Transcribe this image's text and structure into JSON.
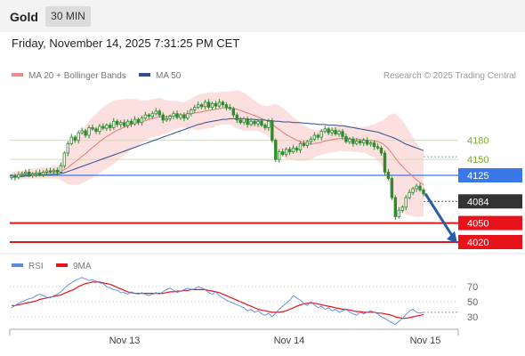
{
  "header": {
    "title": "Gold",
    "timeframe": "30 MIN"
  },
  "timestamp": "Friday, November 14, 2025 7:31:25 PM CET",
  "legend_main": [
    {
      "name": "MA 20 + Bollinger Bands",
      "color": "#f28a8a"
    },
    {
      "name": "MA 50",
      "color": "#2f4f8f"
    }
  ],
  "credit": "Research © 2025 Trading Central",
  "colors": {
    "up": "#2e8b2e",
    "down": "#2e8b2e",
    "resistance": "#e8121b",
    "pivot": "#3a78e8",
    "current": "#333333",
    "arrow": "#2a5caa",
    "band": "#fcd9d9",
    "ma20": "#e07b7b",
    "ma50": "#2f4f8f",
    "rsi": "#5b8bdc",
    "rsi_ma": "#e8121b"
  },
  "chart_data": [
    {
      "type": "candlestick",
      "title": "",
      "x_ticks": [
        "Nov 13",
        "Nov 14",
        "Nov 15"
      ],
      "levels": [
        {
          "value": 4180,
          "label": "4180",
          "kind": "support-thin"
        },
        {
          "value": 4150,
          "label": "4150",
          "kind": "support-thin"
        },
        {
          "value": 4125,
          "label": "4125",
          "kind": "pivot"
        },
        {
          "value": 4084,
          "label": "4084",
          "kind": "current"
        },
        {
          "value": 4050,
          "label": "4050",
          "kind": "target"
        },
        {
          "value": 4020,
          "label": "4020",
          "kind": "target"
        }
      ],
      "ylim": [
        4010,
        4250
      ],
      "close": [
        4124,
        4122,
        4126,
        4128,
        4130,
        4125,
        4127,
        4129,
        4126,
        4130,
        4132,
        4131,
        4133,
        4130,
        4140,
        4160,
        4175,
        4185,
        4180,
        4192,
        4195,
        4188,
        4200,
        4198,
        4194,
        4202,
        4199,
        4204,
        4200,
        4210,
        4205,
        4208,
        4203,
        4210,
        4206,
        4213,
        4208,
        4215,
        4220,
        4218,
        4222,
        4226,
        4220,
        4212,
        4214,
        4218,
        4222,
        4216,
        4220,
        4215,
        4222,
        4228,
        4232,
        4236,
        4233,
        4240,
        4232,
        4238,
        4234,
        4240,
        4236,
        4232,
        4230,
        4220,
        4212,
        4208,
        4214,
        4205,
        4210,
        4206,
        4210,
        4204,
        4200,
        4210,
        4180,
        4150,
        4162,
        4158,
        4166,
        4162,
        4168,
        4165,
        4175,
        4172,
        4178,
        4182,
        4188,
        4185,
        4194,
        4198,
        4192,
        4196,
        4190,
        4194,
        4186,
        4178,
        4182,
        4175,
        4179,
        4176,
        4180,
        4174,
        4176,
        4170,
        4168,
        4160,
        4130,
        4120,
        4090,
        4060,
        4070,
        4075,
        4090,
        4098,
        4104,
        4108,
        4102,
        4096
      ],
      "ma20": [
        4124,
        4125,
        4125,
        4126,
        4127,
        4127,
        4128,
        4128,
        4128,
        4129,
        4129,
        4129,
        4130,
        4130,
        4131,
        4134,
        4137,
        4142,
        4146,
        4150,
        4155,
        4159,
        4164,
        4169,
        4173,
        4178,
        4182,
        4186,
        4189,
        4193,
        4196,
        4198,
        4201,
        4203,
        4205,
        4207,
        4208,
        4209,
        4211,
        4213,
        4215,
        4216,
        4217,
        4217,
        4217,
        4218,
        4219,
        4220,
        4220,
        4220,
        4221,
        4222,
        4223,
        4224,
        4225,
        4226,
        4227,
        4228,
        4229,
        4230,
        4231,
        4231,
        4231,
        4230,
        4229,
        4227,
        4225,
        4223,
        4221,
        4219,
        4217,
        4214,
        4212,
        4210,
        4206,
        4201,
        4197,
        4193,
        4189,
        4186,
        4183,
        4180,
        4178,
        4176,
        4175,
        4174,
        4175,
        4176,
        4177,
        4179,
        4180,
        4181,
        4182,
        4183,
        4183,
        4183,
        4183,
        4182,
        4182,
        4181,
        4181,
        4180,
        4180,
        4179,
        4178,
        4176,
        4172,
        4167,
        4160,
        4152,
        4145,
        4139,
        4133,
        4128,
        4123,
        4118,
        4114,
        4110
      ],
      "ma50": [
        4122,
        4122,
        4123,
        4123,
        4124,
        4124,
        4125,
        4125,
        4125,
        4126,
        4126,
        4126,
        4127,
        4127,
        4128,
        4129,
        4131,
        4133,
        4135,
        4137,
        4139,
        4141,
        4143,
        4145,
        4147,
        4149,
        4151,
        4153,
        4155,
        4157,
        4159,
        4161,
        4163,
        4165,
        4167,
        4169,
        4171,
        4173,
        4175,
        4177,
        4179,
        4181,
        4183,
        4185,
        4187,
        4189,
        4191,
        4193,
        4195,
        4197,
        4199,
        4201,
        4203,
        4205,
        4206,
        4208,
        4209,
        4210,
        4211,
        4212,
        4213,
        4213,
        4214,
        4214,
        4214,
        4214,
        4214,
        4213,
        4213,
        4213,
        4212,
        4212,
        4212,
        4211,
        4211,
        4210,
        4210,
        4209,
        4209,
        4209,
        4208,
        4208,
        4208,
        4207,
        4207,
        4206,
        4206,
        4205,
        4205,
        4205,
        4204,
        4204,
        4204,
        4203,
        4203,
        4202,
        4201,
        4200,
        4199,
        4198,
        4197,
        4196,
        4195,
        4194,
        4193,
        4191,
        4189,
        4187,
        4185,
        4183,
        4180,
        4177,
        4174,
        4172,
        4170,
        4168,
        4166,
        4164
      ],
      "bb_width": [
        6,
        6,
        7,
        7,
        7,
        8,
        8,
        8,
        9,
        9,
        9,
        9,
        10,
        10,
        14,
        20,
        26,
        32,
        36,
        40,
        42,
        44,
        46,
        48,
        48,
        50,
        50,
        50,
        50,
        50,
        48,
        46,
        44,
        42,
        40,
        38,
        36,
        34,
        32,
        30,
        30,
        30,
        30,
        28,
        26,
        24,
        22,
        22,
        20,
        20,
        22,
        24,
        26,
        28,
        28,
        28,
        28,
        28,
        26,
        26,
        26,
        26,
        26,
        28,
        30,
        30,
        30,
        28,
        26,
        24,
        22,
        22,
        22,
        24,
        30,
        36,
        38,
        38,
        38,
        36,
        34,
        32,
        30,
        28,
        26,
        24,
        22,
        20,
        20,
        20,
        20,
        20,
        20,
        20,
        20,
        20,
        20,
        20,
        20,
        20,
        20,
        22,
        24,
        26,
        30,
        34,
        42,
        52,
        62,
        70,
        72,
        72,
        70,
        66,
        62,
        58,
        54,
        50
      ]
    },
    {
      "type": "line",
      "title": "",
      "legend": [
        {
          "name": "RSI",
          "color": "#5b8bdc"
        },
        {
          "name": "9MA",
          "color": "#e8121b"
        }
      ],
      "y_ticks": [
        70,
        50,
        30
      ],
      "ylim": [
        15,
        85
      ],
      "rsi": [
        42,
        45,
        48,
        50,
        52,
        54,
        55,
        58,
        60,
        58,
        56,
        55,
        58,
        60,
        63,
        68,
        72,
        75,
        78,
        80,
        82,
        80,
        78,
        79,
        77,
        75,
        74,
        70,
        68,
        66,
        65,
        62,
        62,
        60,
        63,
        61,
        60,
        62,
        60,
        58,
        60,
        62,
        60,
        63,
        66,
        68,
        65,
        62,
        64,
        66,
        68,
        66,
        67,
        70,
        68,
        66,
        62,
        60,
        63,
        58,
        55,
        52,
        50,
        48,
        46,
        44,
        42,
        38,
        40,
        36,
        38,
        34,
        32,
        35,
        30,
        35,
        40,
        44,
        48,
        52,
        58,
        55,
        52,
        48,
        45,
        50,
        46,
        42,
        44,
        40,
        42,
        38,
        40,
        36,
        38,
        40,
        36,
        34,
        32,
        36,
        34,
        36,
        38,
        36,
        34,
        30,
        28,
        25,
        22,
        20,
        24,
        28,
        33,
        38,
        40,
        36,
        35,
        36
      ],
      "ma9": [
        45,
        45,
        46,
        47,
        48,
        49,
        50,
        51,
        53,
        54,
        55,
        56,
        57,
        58,
        59,
        61,
        63,
        65,
        67,
        70,
        72,
        74,
        75,
        76,
        76,
        76,
        75,
        74,
        73,
        71,
        69,
        67,
        65,
        63,
        62,
        61,
        61,
        61,
        61,
        61,
        61,
        61,
        61,
        61,
        62,
        63,
        63,
        64,
        64,
        65,
        65,
        66,
        66,
        66,
        66,
        66,
        65,
        64,
        63,
        62,
        60,
        58,
        56,
        54,
        52,
        50,
        48,
        46,
        44,
        42,
        40,
        39,
        38,
        37,
        36,
        36,
        36,
        37,
        38,
        40,
        42,
        44,
        46,
        47,
        48,
        48,
        48,
        47,
        46,
        45,
        44,
        43,
        42,
        41,
        40,
        40,
        39,
        38,
        37,
        37,
        36,
        36,
        36,
        36,
        35,
        35,
        34,
        33,
        32,
        30,
        29,
        28,
        28,
        29,
        30,
        31,
        32,
        33
      ]
    }
  ]
}
